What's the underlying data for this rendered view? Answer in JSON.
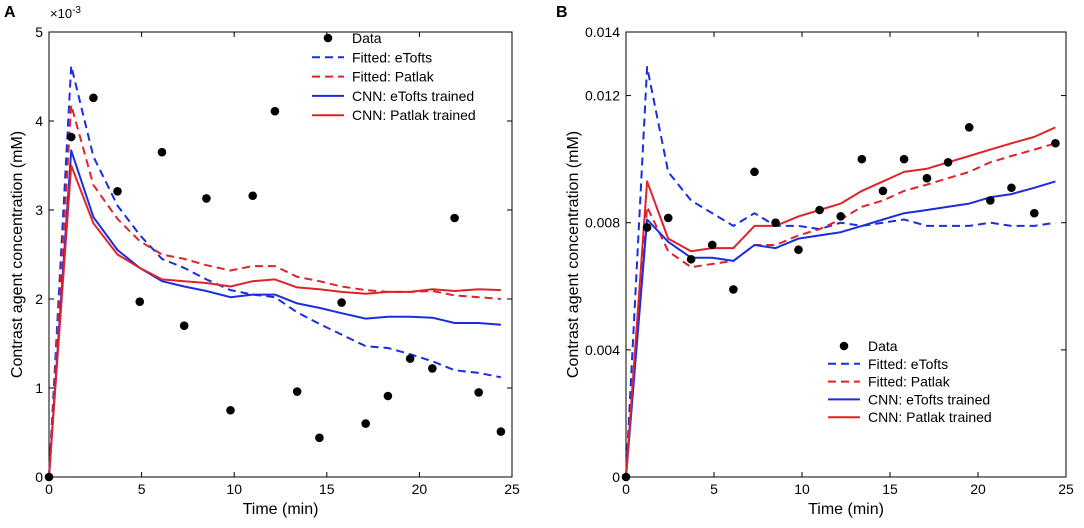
{
  "chart_data": [
    {
      "panel": "A",
      "type": "line",
      "xlabel": "Time (min)",
      "ylabel": "Contrast agent concentration (mM)",
      "xlim": [
        0,
        25
      ],
      "ylim": [
        0,
        5
      ],
      "xticks": [
        0,
        5,
        10,
        15,
        20,
        25
      ],
      "yticks": [
        0,
        1,
        2,
        3,
        4,
        5
      ],
      "ytick_labels": [
        "0",
        "1",
        "2",
        "3",
        "4",
        "5"
      ],
      "multiplier_base": "×10",
      "multiplier_exp": "-3",
      "legend_position": "top-right",
      "scatter": {
        "name": "Data",
        "x": [
          0,
          1.2,
          2.4,
          3.7,
          4.9,
          6.1,
          7.3,
          8.5,
          9.8,
          11.0,
          12.2,
          13.4,
          14.6,
          15.8,
          17.1,
          18.3,
          19.5,
          20.7,
          21.9,
          23.2,
          24.4
        ],
        "y": [
          0,
          3.82,
          4.26,
          3.21,
          1.97,
          3.65,
          1.7,
          3.13,
          0.75,
          3.16,
          4.11,
          0.96,
          0.44,
          1.96,
          0.6,
          0.91,
          1.33,
          1.22,
          2.91,
          0.95,
          0.51
        ]
      },
      "series": [
        {
          "name": "Fitted: eTofts",
          "color": "#1a2ee0",
          "dash": "dashed",
          "x": [
            0,
            1.2,
            2.4,
            3.7,
            4.9,
            6.1,
            7.3,
            8.5,
            9.8,
            11.0,
            12.2,
            13.4,
            14.6,
            15.8,
            17.1,
            18.3,
            19.5,
            20.7,
            21.9,
            23.2,
            24.4
          ],
          "y": [
            0,
            4.62,
            3.6,
            3.05,
            2.72,
            2.45,
            2.35,
            2.22,
            2.1,
            2.05,
            2.02,
            1.85,
            1.72,
            1.6,
            1.47,
            1.45,
            1.38,
            1.3,
            1.2,
            1.17,
            1.12
          ]
        },
        {
          "name": "Fitted: Patlak",
          "color": "#e0232b",
          "dash": "dashed",
          "x": [
            0,
            1.2,
            2.4,
            3.7,
            4.9,
            6.1,
            7.3,
            8.5,
            9.8,
            11.0,
            12.2,
            13.4,
            14.6,
            15.8,
            17.1,
            18.3,
            19.5,
            20.7,
            21.9,
            23.2,
            24.4
          ],
          "y": [
            0,
            4.18,
            3.28,
            2.9,
            2.65,
            2.5,
            2.45,
            2.38,
            2.32,
            2.37,
            2.37,
            2.25,
            2.2,
            2.14,
            2.1,
            2.08,
            2.08,
            2.09,
            2.04,
            2.02,
            2.0
          ]
        },
        {
          "name": "CNN: eTofts trained",
          "color": "#1a2ee0",
          "dash": "solid",
          "x": [
            0,
            1.2,
            2.4,
            3.7,
            4.9,
            6.1,
            7.3,
            8.5,
            9.8,
            11.0,
            12.2,
            13.4,
            14.6,
            15.8,
            17.1,
            18.3,
            19.5,
            20.7,
            21.9,
            23.2,
            24.4
          ],
          "y": [
            0,
            3.67,
            2.92,
            2.55,
            2.35,
            2.2,
            2.14,
            2.09,
            2.02,
            2.05,
            2.05,
            1.95,
            1.9,
            1.84,
            1.78,
            1.8,
            1.8,
            1.79,
            1.73,
            1.73,
            1.71
          ]
        },
        {
          "name": "CNN: Patlak trained",
          "color": "#e0232b",
          "dash": "solid",
          "x": [
            0,
            1.2,
            2.4,
            3.7,
            4.9,
            6.1,
            7.3,
            8.5,
            9.8,
            11.0,
            12.2,
            13.4,
            14.6,
            15.8,
            17.1,
            18.3,
            19.5,
            20.7,
            21.9,
            23.2,
            24.4
          ],
          "y": [
            0,
            3.5,
            2.85,
            2.5,
            2.35,
            2.22,
            2.2,
            2.18,
            2.14,
            2.2,
            2.22,
            2.13,
            2.11,
            2.08,
            2.06,
            2.08,
            2.08,
            2.11,
            2.09,
            2.11,
            2.1
          ]
        }
      ]
    },
    {
      "panel": "B",
      "type": "line",
      "xlabel": "Time (min)",
      "ylabel": "Contrast agent concentration (mM)",
      "xlim": [
        0,
        25
      ],
      "ylim": [
        0,
        0.014
      ],
      "xticks": [
        0,
        5,
        10,
        15,
        20,
        25
      ],
      "yticks": [
        0,
        0.004,
        0.008,
        0.012,
        0.014
      ],
      "ytick_labels": [
        "0",
        "0.004",
        "0.008",
        "0.012",
        "0.014"
      ],
      "legend_position": "bottom-right",
      "scatter": {
        "name": "Data",
        "x": [
          0,
          1.2,
          2.4,
          3.7,
          4.9,
          6.1,
          7.3,
          8.5,
          9.8,
          11.0,
          12.2,
          13.4,
          14.6,
          15.8,
          17.1,
          18.3,
          19.5,
          20.7,
          21.9,
          23.2,
          24.4
        ],
        "y": [
          0,
          0.00785,
          0.00815,
          0.00685,
          0.0073,
          0.0059,
          0.0096,
          0.008,
          0.00715,
          0.0084,
          0.0082,
          0.01,
          0.009,
          0.01,
          0.0094,
          0.0099,
          0.011,
          0.0087,
          0.0091,
          0.0083,
          0.0105
        ]
      },
      "series": [
        {
          "name": "Fitted: eTofts",
          "color": "#1a2ee0",
          "dash": "dashed",
          "x": [
            0,
            1.2,
            2.4,
            3.7,
            4.9,
            6.1,
            7.3,
            8.5,
            9.8,
            11.0,
            12.2,
            13.4,
            14.6,
            15.8,
            17.1,
            18.3,
            19.5,
            20.7,
            21.9,
            23.2,
            24.4
          ],
          "y": [
            0,
            0.0129,
            0.0096,
            0.0087,
            0.0083,
            0.0079,
            0.0083,
            0.0079,
            0.0079,
            0.0078,
            0.008,
            0.0079,
            0.008,
            0.0081,
            0.0079,
            0.0079,
            0.0079,
            0.008,
            0.0079,
            0.0079,
            0.008
          ]
        },
        {
          "name": "Fitted: Patlak",
          "color": "#e0232b",
          "dash": "dashed",
          "x": [
            0,
            1.2,
            2.4,
            3.7,
            4.9,
            6.1,
            7.3,
            8.5,
            9.8,
            11.0,
            12.2,
            13.4,
            14.6,
            15.8,
            17.1,
            18.3,
            19.5,
            20.7,
            21.9,
            23.2,
            24.4
          ],
          "y": [
            0,
            0.0085,
            0.0071,
            0.0066,
            0.0067,
            0.0068,
            0.0073,
            0.0073,
            0.0076,
            0.0078,
            0.0081,
            0.0085,
            0.0087,
            0.009,
            0.0092,
            0.0094,
            0.0096,
            0.0099,
            0.0101,
            0.0103,
            0.0105
          ]
        },
        {
          "name": "CNN: eTofts trained",
          "color": "#1a2ee0",
          "dash": "solid",
          "x": [
            0,
            1.2,
            2.4,
            3.7,
            4.9,
            6.1,
            7.3,
            8.5,
            9.8,
            11.0,
            12.2,
            13.4,
            14.6,
            15.8,
            17.1,
            18.3,
            19.5,
            20.7,
            21.9,
            23.2,
            24.4
          ],
          "y": [
            0,
            0.0081,
            0.0074,
            0.0069,
            0.0069,
            0.0068,
            0.0073,
            0.0072,
            0.0075,
            0.0076,
            0.0077,
            0.0079,
            0.0081,
            0.0083,
            0.0084,
            0.0085,
            0.0086,
            0.0088,
            0.0089,
            0.0091,
            0.0093
          ]
        },
        {
          "name": "CNN: Patlak trained",
          "color": "#e0232b",
          "dash": "solid",
          "x": [
            0,
            1.2,
            2.4,
            3.7,
            4.9,
            6.1,
            7.3,
            8.5,
            9.8,
            11.0,
            12.2,
            13.4,
            14.6,
            15.8,
            17.1,
            18.3,
            19.5,
            20.7,
            21.9,
            23.2,
            24.4
          ],
          "y": [
            0,
            0.0093,
            0.0075,
            0.0071,
            0.0072,
            0.0072,
            0.0079,
            0.0079,
            0.0082,
            0.0084,
            0.0086,
            0.009,
            0.0093,
            0.0096,
            0.0097,
            0.0099,
            0.0101,
            0.0103,
            0.0105,
            0.0107,
            0.011
          ]
        }
      ]
    }
  ]
}
